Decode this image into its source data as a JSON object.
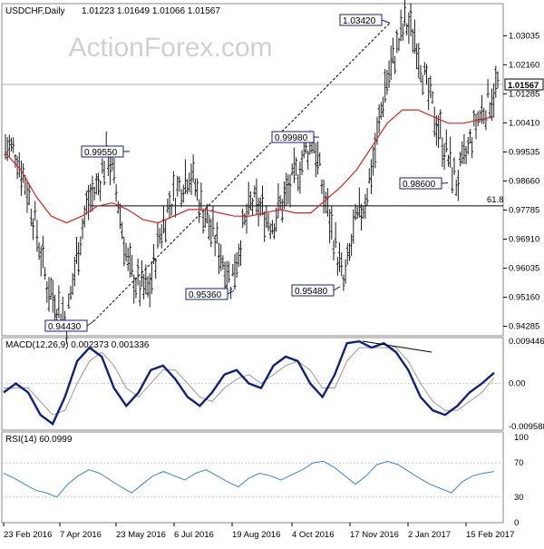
{
  "chart_data": {
    "type": "ohlc",
    "symbol": "USDCHF",
    "timeframe": "Daily",
    "header": {
      "title": "USDCHF,Daily",
      "ohlc": "1.01223 1.01649 1.01066 1.01567"
    },
    "watermark": "ActionForex.com",
    "price_ylim": [
      0.94,
      1.04
    ],
    "price_ticks": [
      "1.03035",
      "1.02160",
      "1.01285",
      "1.00410",
      "0.99535",
      "0.98660",
      "0.97785",
      "0.96910",
      "0.96035",
      "0.95160",
      "0.94285"
    ],
    "current_price": "1.01567",
    "x_ticks": [
      "23 Feb 2016",
      "7 Apr 2016",
      "23 May 2016",
      "6 Jul 2016",
      "19 Aug 2016",
      "4 Oct 2016",
      "17 Nov 2016",
      "2 Jan 2017",
      "15 Feb 2017"
    ],
    "fib_level": {
      "label": "61.8",
      "value": 0.9791
    },
    "annotations": [
      {
        "label": "0.94430",
        "value": 0.9443
      },
      {
        "label": "0.99550",
        "value": 0.9955
      },
      {
        "label": "0.95360",
        "value": 0.9536
      },
      {
        "label": "0.99980",
        "value": 0.9998
      },
      {
        "label": "0.95480",
        "value": 0.9548
      },
      {
        "label": "1.03420",
        "value": 1.0342
      },
      {
        "label": "0.98600",
        "value": 0.986
      }
    ],
    "price_path": [
      0.997,
      0.9955,
      0.986,
      0.972,
      0.956,
      0.95,
      0.9443,
      0.965,
      0.98,
      0.985,
      0.9955,
      0.98,
      0.96,
      0.955,
      0.9536,
      0.97,
      0.98,
      0.985,
      0.99,
      0.98,
      0.972,
      0.965,
      0.956,
      0.97,
      0.98,
      0.978,
      0.974,
      0.98,
      0.986,
      0.993,
      0.9998,
      0.983,
      0.97,
      0.9548,
      0.972,
      0.98,
      0.995,
      1.015,
      1.025,
      1.0342,
      1.03,
      1.015,
      1.005,
      0.995,
      0.986,
      0.995,
      1.005,
      1.01,
      1.0157
    ],
    "ma_path": [
      0.995,
      0.99,
      0.982,
      0.976,
      0.974,
      0.976,
      0.979,
      0.98,
      0.978,
      0.975,
      0.974,
      0.976,
      0.978,
      0.978,
      0.977,
      0.976,
      0.976,
      0.977,
      0.978,
      0.977,
      0.977,
      0.981,
      0.985,
      0.99,
      0.997,
      1.004,
      1.008,
      1.008,
      1.006,
      1.004,
      1.004,
      1.005,
      1.006
    ],
    "macd": {
      "label": "MACD(12,26,9) 0.002373 0.001336",
      "ticks": [
        "0.009446",
        "0.00",
        "-0.009588"
      ],
      "ylim": [
        -0.009588,
        0.009446
      ],
      "macd_path": [
        -0.002,
        0.0,
        -0.002,
        -0.007,
        -0.009,
        -0.003,
        0.005,
        0.008,
        0.006,
        -0.001,
        -0.005,
        -0.002,
        0.003,
        0.004,
        0.001,
        -0.003,
        -0.005,
        -0.002,
        0.002,
        0.003,
        0.0,
        -0.001,
        0.004,
        0.006,
        0.005,
        0.0,
        -0.003,
        0.002,
        0.009,
        0.0094,
        0.008,
        0.009,
        0.007,
        0.003,
        -0.003,
        -0.006,
        -0.007,
        -0.005,
        -0.002,
        0.0,
        0.0024
      ],
      "signal_path": [
        -0.001,
        -0.001,
        -0.001,
        -0.004,
        -0.007,
        -0.006,
        0.0,
        0.005,
        0.007,
        0.004,
        -0.001,
        -0.003,
        0.0,
        0.003,
        0.003,
        0.0,
        -0.003,
        -0.004,
        -0.001,
        0.001,
        0.002,
        0.0,
        0.002,
        0.004,
        0.005,
        0.003,
        -0.001,
        -0.001,
        0.005,
        0.008,
        0.008,
        0.008,
        0.008,
        0.005,
        0.0,
        -0.004,
        -0.006,
        -0.006,
        -0.004,
        -0.002,
        0.0013
      ]
    },
    "rsi": {
      "label": "RSI(14) 60.0999",
      "ticks": [
        "100",
        "70",
        "30",
        "0"
      ],
      "ylim": [
        0,
        100
      ],
      "levels": [
        70,
        30
      ],
      "path": [
        58,
        52,
        45,
        38,
        35,
        30,
        45,
        55,
        62,
        58,
        50,
        42,
        35,
        45,
        55,
        60,
        55,
        50,
        58,
        62,
        55,
        48,
        42,
        52,
        58,
        55,
        50,
        56,
        62,
        70,
        72,
        65,
        55,
        45,
        55,
        68,
        72,
        68,
        60,
        52,
        45,
        40,
        35,
        48,
        55,
        58,
        60
      ]
    },
    "colors": {
      "bars": "#1d1d1d",
      "ma": "#e0201f",
      "macd": "#0c1f8c",
      "signal": "#999999",
      "rsi": "#3a86c8",
      "grid": "#c8c8c8",
      "watermark": "#d0d0d0"
    }
  }
}
